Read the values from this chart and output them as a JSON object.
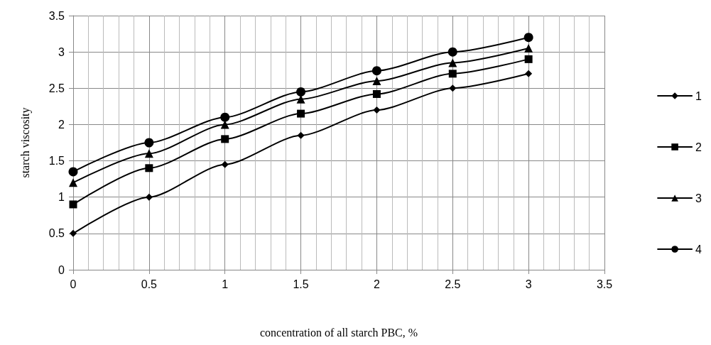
{
  "chart_data": {
    "type": "line",
    "xlabel": "concentration of all starch PBC, %",
    "ylabel": "starch viscosity",
    "x": [
      0,
      0.5,
      1,
      1.5,
      2,
      2.5,
      3
    ],
    "series": [
      {
        "name": "1",
        "color": "#000000",
        "marker": "diamond",
        "values": [
          0.5,
          1.0,
          1.45,
          1.85,
          2.2,
          2.5,
          2.7
        ]
      },
      {
        "name": "2",
        "color": "#000000",
        "marker": "square",
        "values": [
          0.9,
          1.4,
          1.8,
          2.15,
          2.42,
          2.7,
          2.9
        ]
      },
      {
        "name": "3",
        "color": "#000000",
        "marker": "triangle",
        "values": [
          1.2,
          1.6,
          2.0,
          2.35,
          2.6,
          2.85,
          3.05
        ]
      },
      {
        "name": "4",
        "color": "#000000",
        "marker": "circle",
        "values": [
          1.35,
          1.75,
          2.1,
          2.45,
          2.74,
          3.0,
          3.2
        ]
      }
    ],
    "xlim": [
      0,
      3.5
    ],
    "xticks": [
      0,
      0.5,
      1,
      1.5,
      2,
      2.5,
      3,
      3.5
    ],
    "ylim": [
      0,
      3.5
    ],
    "yticks": [
      0,
      0.5,
      1,
      1.5,
      2,
      2.5,
      3,
      3.5
    ],
    "grid": true,
    "legend": "right",
    "line_style": "solid"
  }
}
